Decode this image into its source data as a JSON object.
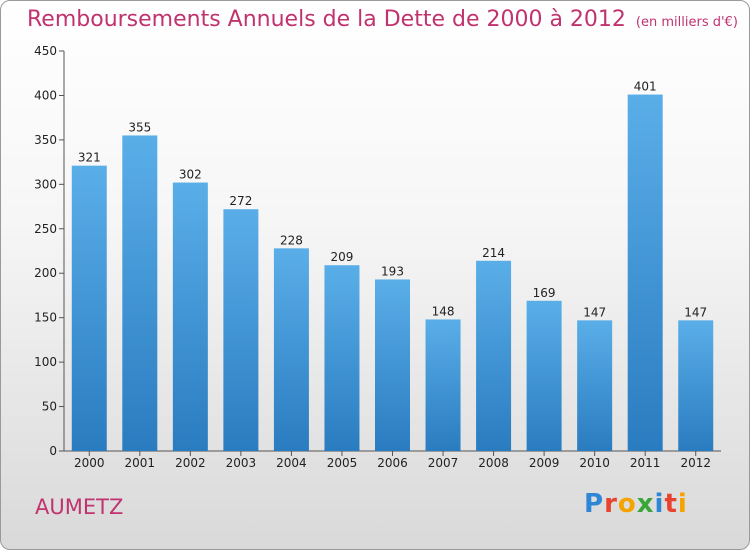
{
  "title": "Remboursements Annuels de la Dette de 2000 à 2012",
  "subtitle": "(en milliers d'€)",
  "place": "AUMETZ",
  "logo": {
    "text": "Proxiti",
    "letters": [
      {
        "ch": "P",
        "color": "#2e86d6"
      },
      {
        "ch": "r",
        "color": "#e8432e"
      },
      {
        "ch": "o",
        "color": "#f5a300"
      },
      {
        "ch": "x",
        "color": "#3aa63a"
      },
      {
        "ch": "i",
        "color": "#2e86d6"
      },
      {
        "ch": "t",
        "color": "#e8432e"
      },
      {
        "ch": "i",
        "color": "#f5a300"
      }
    ]
  },
  "colors": {
    "bar_top": "#5aaee8",
    "bar_bottom": "#2a7cc0",
    "title": "#c0336f"
  },
  "chart_data": {
    "type": "bar",
    "categories": [
      "2000",
      "2001",
      "2002",
      "2003",
      "2004",
      "2005",
      "2006",
      "2007",
      "2008",
      "2009",
      "2010",
      "2011",
      "2012"
    ],
    "values": [
      321,
      355,
      302,
      272,
      228,
      209,
      193,
      148,
      214,
      169,
      147,
      401,
      147
    ],
    "ylim": [
      0,
      450
    ],
    "yticks": [
      0,
      50,
      100,
      150,
      200,
      250,
      300,
      350,
      400,
      450
    ],
    "grid": false,
    "legend": "none"
  }
}
